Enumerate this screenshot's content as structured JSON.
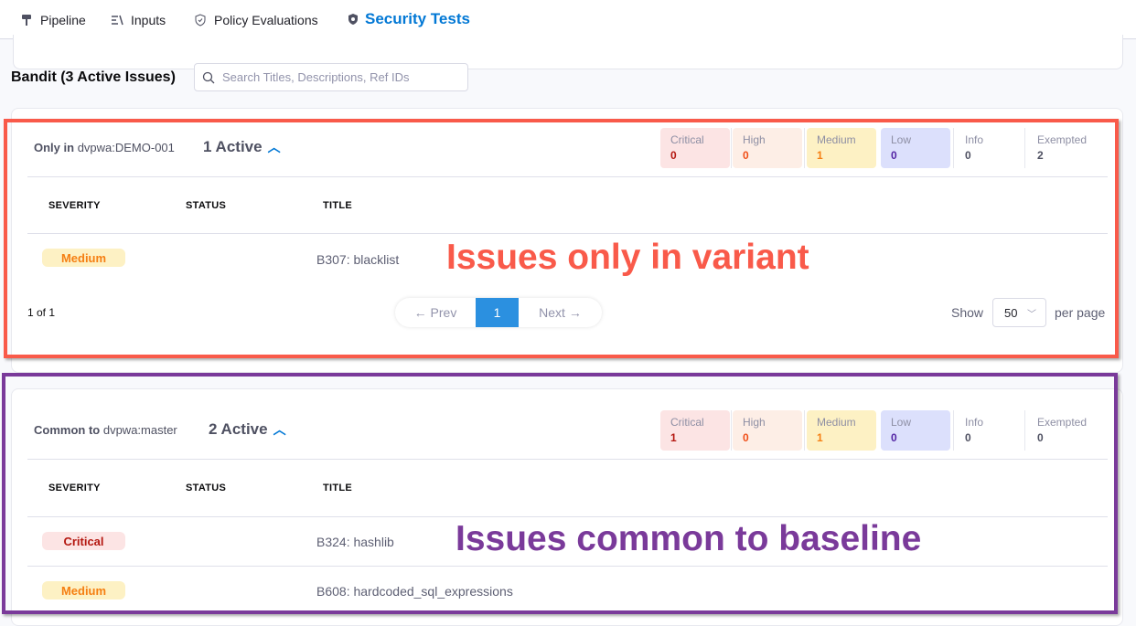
{
  "tabs": [
    {
      "label": "Pipeline",
      "icon": "pipeline-icon"
    },
    {
      "label": "Inputs",
      "icon": "inputs-icon"
    },
    {
      "label": "Policy Evaluations",
      "icon": "shield-check-icon"
    },
    {
      "label": "Security Tests",
      "icon": "shield-icon",
      "active": true
    }
  ],
  "scanner_title": "Bandit (3 Active Issues)",
  "search": {
    "placeholder": "Search Titles, Descriptions, Ref IDs",
    "value": ""
  },
  "columns": [
    "SEVERITY",
    "STATUS",
    "TITLE"
  ],
  "sections": [
    {
      "prefix": "Only in",
      "target": "dvpwa:DEMO-001",
      "active": "1 Active",
      "summary": {
        "critical": "0",
        "high": "0",
        "medium": "1",
        "low": "0",
        "info": "0",
        "exempted": "2"
      },
      "rows": [
        {
          "severity": "Medium",
          "status": "",
          "title": "B307: blacklist"
        }
      ],
      "annotation": "Issues only in variant"
    },
    {
      "prefix": "Common to",
      "target": "dvpwa:master",
      "active": "2 Active",
      "summary": {
        "critical": "1",
        "high": "0",
        "medium": "1",
        "low": "0",
        "info": "0",
        "exempted": "0"
      },
      "rows": [
        {
          "severity": "Critical",
          "status": "",
          "title": "B324: hashlib"
        },
        {
          "severity": "Medium",
          "status": "",
          "title": "B608: hardcoded_sql_expressions"
        }
      ],
      "annotation": "Issues common to baseline"
    }
  ],
  "summary_labels": {
    "critical": "Critical",
    "high": "High",
    "medium": "Medium",
    "low": "Low",
    "info": "Info",
    "exempted": "Exempted"
  },
  "pagination": {
    "range": "1 of 1",
    "prev": "← Prev",
    "page": "1",
    "next": "Next →",
    "show": "Show",
    "per_page_value": "50",
    "per_page": "per page"
  },
  "colors": {
    "annotation_variant": "#f95a4a",
    "annotation_common": "#7a3a9a",
    "accent": "#0278d5"
  }
}
